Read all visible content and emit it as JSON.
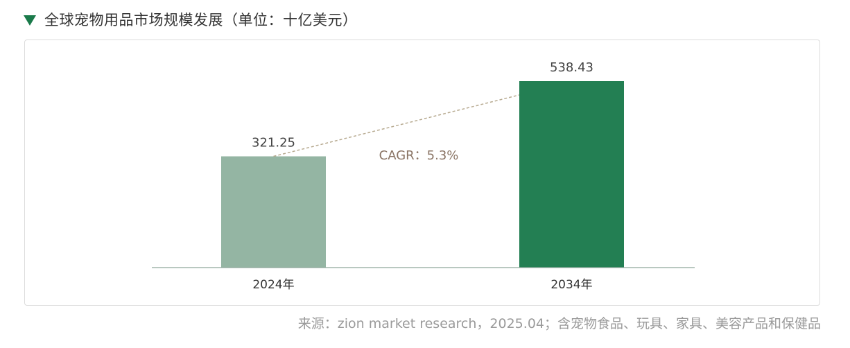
{
  "header": {
    "icon": "triangle-down-icon",
    "title": "全球宠物用品市场规模发展（单位：十亿美元）"
  },
  "source_note": "来源：zion market research，2025.04；含宠物食品、玩具、家具、美容产品和保健品",
  "colors": {
    "accent": "#1a7a4a",
    "bar_2024": "#94b5a3",
    "bar_2034": "#237f53",
    "connector": "#b7aa90",
    "cagr_text": "#8a7464",
    "baseline": "#8fa89b"
  },
  "chart_data": {
    "type": "bar",
    "categories": [
      "2024年",
      "2034年"
    ],
    "values": [
      321.25,
      538.43
    ],
    "value_labels": [
      "321.25",
      "538.43"
    ],
    "title": "全球宠物用品市场规模发展（单位：十亿美元）",
    "unit": "十亿美元",
    "ylim": [
      0,
      620
    ],
    "grid": false,
    "legend": "none",
    "annotation": "CAGR：5.3%"
  }
}
